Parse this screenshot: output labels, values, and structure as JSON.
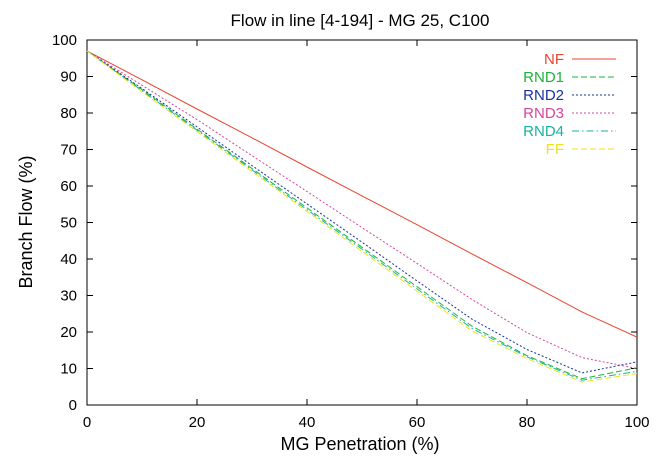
{
  "chart_data": {
    "type": "line",
    "title": "Flow in line [4-194] - MG 25, C100",
    "xlabel": "MG Penetration (%)",
    "ylabel": "Branch Flow (%)",
    "xlim": [
      0,
      100
    ],
    "ylim": [
      0,
      100
    ],
    "xticks": [
      0,
      20,
      40,
      60,
      80,
      100
    ],
    "yticks": [
      0,
      10,
      20,
      30,
      40,
      50,
      60,
      70,
      80,
      90,
      100
    ],
    "grid": false,
    "legend_position": "top-right",
    "series": [
      {
        "name": "NF",
        "color": "#e8452f",
        "dash": "solid",
        "x": [
          0,
          10,
          20,
          30,
          40,
          50,
          60,
          70,
          80,
          90,
          100
        ],
        "y": [
          97,
          89.1,
          81.1,
          73.2,
          65.2,
          57.3,
          49.4,
          41.4,
          33.5,
          25.5,
          18.6
        ]
      },
      {
        "name": "RND1",
        "color": "#1db33a",
        "dash": "dashed",
        "x": [
          0,
          10,
          20,
          30,
          40,
          50,
          60,
          70,
          80,
          90,
          100
        ],
        "y": [
          97,
          86.4,
          75.6,
          64.8,
          54,
          43.2,
          32.4,
          21.6,
          13.5,
          7.2,
          10.2
        ]
      },
      {
        "name": "RND2",
        "color": "#1a2fa0",
        "dash": "dotted",
        "x": [
          0,
          10,
          20,
          30,
          40,
          50,
          60,
          70,
          80,
          90,
          100
        ],
        "y": [
          97,
          86.7,
          76.2,
          65.6,
          55.1,
          44.6,
          34,
          23.5,
          15.2,
          8.8,
          11.8
        ]
      },
      {
        "name": "RND3",
        "color": "#d6479a",
        "dash": "dotted",
        "x": [
          0,
          10,
          20,
          30,
          40,
          50,
          60,
          70,
          80,
          90,
          100
        ],
        "y": [
          97,
          87.6,
          78.2,
          68.3,
          58.5,
          48.6,
          38.8,
          28.9,
          19.8,
          13,
          10
        ]
      },
      {
        "name": "RND4",
        "color": "#16b3a3",
        "dash": "dashdot",
        "x": [
          0,
          10,
          20,
          30,
          40,
          50,
          60,
          70,
          80,
          90,
          100
        ],
        "y": [
          97,
          86.1,
          75.3,
          64.4,
          53.5,
          42.7,
          31.8,
          21,
          13.2,
          6.8,
          9.2
        ]
      },
      {
        "name": "FF",
        "color": "#f2e21d",
        "dash": "dashed",
        "x": [
          0,
          10,
          20,
          30,
          40,
          50,
          60,
          70,
          80,
          90,
          100
        ],
        "y": [
          97,
          85.8,
          74.9,
          64,
          53,
          42.1,
          31.2,
          20.3,
          12.7,
          6.3,
          8.6
        ]
      }
    ]
  }
}
